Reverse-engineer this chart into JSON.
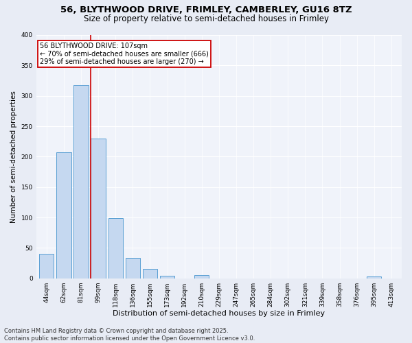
{
  "title1": "56, BLYTHWOOD DRIVE, FRIMLEY, CAMBERLEY, GU16 8TZ",
  "title2": "Size of property relative to semi-detached houses in Frimley",
  "xlabel": "Distribution of semi-detached houses by size in Frimley",
  "ylabel": "Number of semi-detached properties",
  "categories": [
    "44sqm",
    "62sqm",
    "81sqm",
    "99sqm",
    "118sqm",
    "136sqm",
    "155sqm",
    "173sqm",
    "192sqm",
    "210sqm",
    "229sqm",
    "247sqm",
    "265sqm",
    "284sqm",
    "302sqm",
    "321sqm",
    "339sqm",
    "358sqm",
    "376sqm",
    "395sqm",
    "413sqm"
  ],
  "values": [
    40,
    207,
    318,
    230,
    99,
    33,
    16,
    4,
    0,
    5,
    0,
    0,
    0,
    0,
    0,
    0,
    0,
    0,
    0,
    3,
    0
  ],
  "bar_color": "#c5d8f0",
  "bar_edge_color": "#5a9fd4",
  "vline_color": "#cc0000",
  "vline_x_index": 2.55,
  "annotation_title": "56 BLYTHWOOD DRIVE: 107sqm",
  "annotation_line1": "← 70% of semi-detached houses are smaller (666)",
  "annotation_line2": "29% of semi-detached houses are larger (270) →",
  "annotation_box_color": "#ffffff",
  "annotation_box_edge_color": "#cc0000",
  "footer1": "Contains HM Land Registry data © Crown copyright and database right 2025.",
  "footer2": "Contains public sector information licensed under the Open Government Licence v3.0.",
  "ylim": [
    0,
    400
  ],
  "yticks": [
    0,
    50,
    100,
    150,
    200,
    250,
    300,
    350,
    400
  ],
  "bg_color": "#e8ecf5",
  "plot_bg_color": "#f0f3fa",
  "grid_color": "#ffffff",
  "title1_fontsize": 9.5,
  "title2_fontsize": 8.5,
  "xlabel_fontsize": 8,
  "ylabel_fontsize": 7.5,
  "tick_fontsize": 6.5,
  "annotation_fontsize": 7,
  "footer_fontsize": 6
}
